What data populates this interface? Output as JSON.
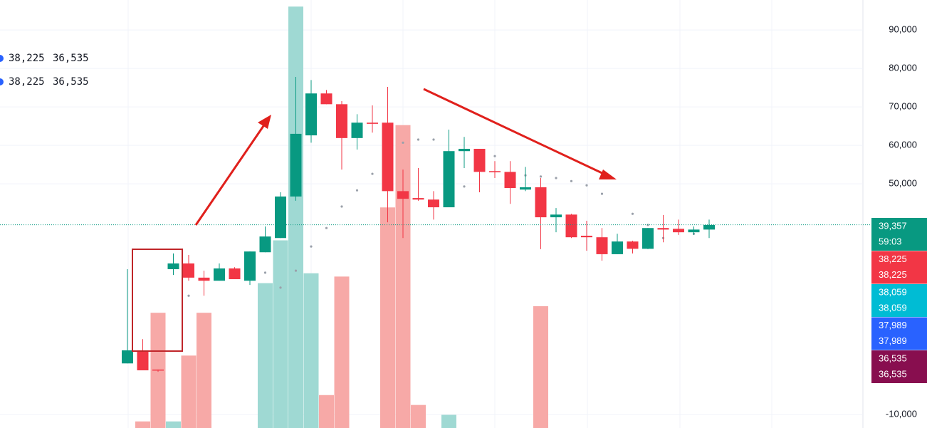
{
  "chart_data": {
    "type": "candlestick",
    "up_color": "#089981",
    "down_color": "#f23645",
    "volume_up_color": "#9fd9d3",
    "volume_down_color": "#f7a9a7",
    "dot_color": "#9aa0aa",
    "ylim": [
      -13500,
      97800
    ],
    "volume_lim": [
      0,
      130
    ],
    "yticks": [
      {
        "value": 90000,
        "label": "90,000"
      },
      {
        "value": 80000,
        "label": "80,000"
      },
      {
        "value": 70000,
        "label": "70,000"
      },
      {
        "value": 60000,
        "label": "60,000"
      },
      {
        "value": 50000,
        "label": "50,000"
      },
      {
        "value": -10000,
        "label": "-10,000"
      }
    ],
    "grid": true,
    "candles": {
      "open": [
        3300,
        6700,
        1700,
        27800,
        29300,
        25600,
        24800,
        28000,
        24800,
        32200,
        35900,
        46700,
        62600,
        73500,
        70700,
        61900,
        65900,
        65900,
        48100,
        46300,
        45900,
        43900,
        58500,
        59100,
        53300,
        53100,
        48500,
        49100,
        41300,
        42000,
        36500,
        36100,
        31700,
        35000,
        33100,
        38500,
        38300,
        37400,
        38100
      ],
      "high": [
        27800,
        9600,
        1700,
        31900,
        31500,
        27400,
        29300,
        28300,
        32400,
        38900,
        47800,
        77800,
        77000,
        74400,
        71500,
        68100,
        70400,
        75200,
        53700,
        54100,
        48100,
        64100,
        62200,
        59100,
        55900,
        55900,
        54400,
        51500,
        43700,
        42200,
        40400,
        38500,
        37000,
        35200,
        38500,
        41900,
        40700,
        38900,
        40700
      ],
      "low": [
        3300,
        1500,
        1100,
        26300,
        24800,
        20900,
        24800,
        25200,
        23700,
        32200,
        35900,
        45600,
        60700,
        70700,
        53700,
        58900,
        63300,
        40000,
        35900,
        45600,
        40700,
        43900,
        54100,
        47800,
        51500,
        44800,
        48100,
        33000,
        37400,
        35900,
        32600,
        30000,
        31700,
        31900,
        33000,
        34800,
        36700,
        36700,
        35900
      ],
      "close": [
        6700,
        1500,
        1500,
        29300,
        25600,
        24800,
        28000,
        25200,
        32400,
        36300,
        46700,
        63000,
        73500,
        70700,
        61900,
        65900,
        65600,
        48100,
        46100,
        45900,
        43900,
        58500,
        59100,
        53100,
        53000,
        48900,
        49100,
        41300,
        42000,
        36100,
        36100,
        31700,
        35000,
        33100,
        38500,
        38100,
        37400,
        38100,
        39300
      ]
    },
    "volume": [
      null,
      2,
      35,
      2,
      22,
      35,
      null,
      null,
      null,
      44,
      57,
      128,
      47,
      10,
      46,
      null,
      null,
      67,
      92,
      7,
      null,
      4,
      null,
      null,
      null,
      null,
      null,
      37,
      null,
      null,
      null,
      null,
      null,
      null,
      null,
      null,
      null,
      null,
      null
    ],
    "dots": [
      null,
      null,
      null,
      null,
      20900,
      null,
      null,
      null,
      null,
      26900,
      23000,
      27400,
      33700,
      38500,
      44100,
      48300,
      52600,
      57800,
      60700,
      61500,
      61500,
      null,
      49300,
      null,
      57200,
      null,
      52200,
      51900,
      51500,
      50700,
      49600,
      47400,
      null,
      42200,
      39300,
      35900,
      null,
      37000,
      null
    ],
    "legend": [
      [
        {
          "value": 38225,
          "label": "38,225",
          "color": "#f23645"
        },
        {
          "value": 36535,
          "label": "36,535",
          "color": "#880e4f"
        }
      ],
      [
        {
          "value": 38225,
          "label": "38,225",
          "color": "#f23645"
        },
        {
          "value": 36535,
          "label": "36,535",
          "color": "#880e4f"
        }
      ]
    ],
    "price_tags": [
      {
        "value": 39357,
        "lines": [
          "39,357",
          "59:03"
        ],
        "color": "#089981"
      },
      {
        "value": 38225,
        "lines": [
          "38,225",
          "38,225"
        ],
        "color": "#f23645"
      },
      {
        "value": 38059,
        "lines": [
          "38,059",
          "38,059"
        ],
        "color": "#00bcd4"
      },
      {
        "value": 37989,
        "lines": [
          "37,989",
          "37,989"
        ],
        "color": "#2962ff"
      },
      {
        "value": 36535,
        "lines": [
          "36,535",
          "36,535"
        ],
        "color": "#880e4f"
      }
    ]
  }
}
